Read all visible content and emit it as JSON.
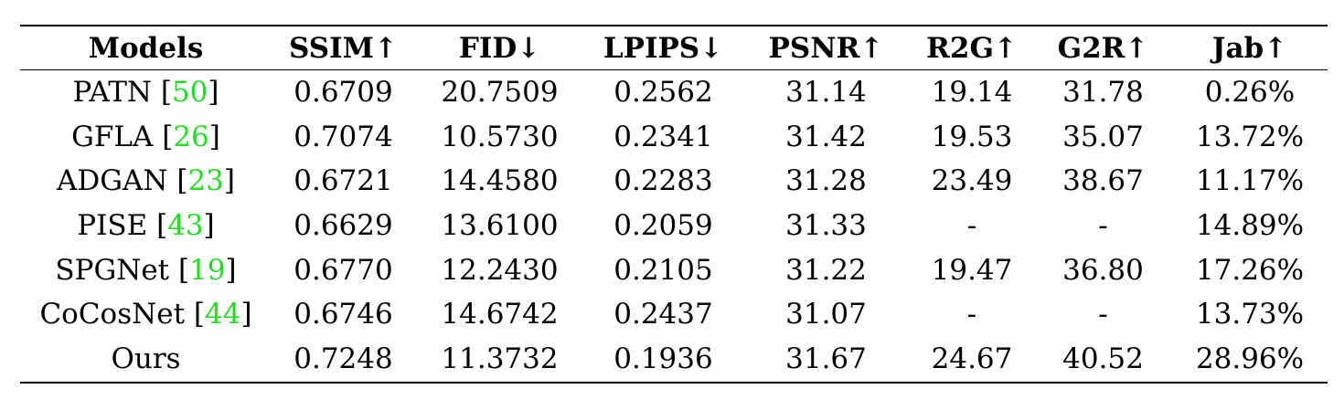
{
  "table": {
    "headers": [
      "Models",
      "SSIM↑",
      "FID↓",
      "LPIPS↓",
      "PSNR↑",
      "R2G↑",
      "G2R↑",
      "Jab↑"
    ],
    "rows": [
      {
        "model": "PATN",
        "ref": "50",
        "ssim": "0.6709",
        "fid": "20.7509",
        "lpips": "0.2562",
        "psnr": "31.14",
        "r2g": "19.14",
        "g2r": "31.78",
        "jab": "0.26%"
      },
      {
        "model": "GFLA",
        "ref": "26",
        "ssim": "0.7074",
        "fid": "10.5730",
        "lpips": "0.2341",
        "psnr": "31.42",
        "r2g": "19.53",
        "g2r": "35.07",
        "jab": "13.72%"
      },
      {
        "model": "ADGAN",
        "ref": "23",
        "ssim": "0.6721",
        "fid": "14.4580",
        "lpips": "0.2283",
        "psnr": "31.28",
        "r2g": "23.49",
        "g2r": "38.67",
        "jab": "11.17%"
      },
      {
        "model": "PISE",
        "ref": "43",
        "ssim": "0.6629",
        "fid": "13.6100",
        "lpips": "0.2059",
        "psnr": "31.33",
        "r2g": "-",
        "g2r": "-",
        "jab": "14.89%"
      },
      {
        "model": "SPGNet",
        "ref": "19",
        "ssim": "0.6770",
        "fid": "12.2430",
        "lpips": "0.2105",
        "psnr": "31.22",
        "r2g": "19.47",
        "g2r": "36.80",
        "jab": "17.26%"
      },
      {
        "model": "CoCosNet",
        "ref": "44",
        "ssim": "0.6746",
        "fid": "14.6742",
        "lpips": "0.2437",
        "psnr": "31.07",
        "r2g": "-",
        "g2r": "-",
        "jab": "13.73%"
      },
      {
        "model": "Ours",
        "ref": "",
        "ssim": "0.7248",
        "fid": "11.3732",
        "lpips": "0.1936",
        "psnr": "31.67",
        "r2g": "24.67",
        "g2r": "40.52",
        "jab": "28.96%"
      }
    ],
    "bold_cells": [
      {
        "row": 1,
        "col": "fid"
      },
      {
        "row": 6,
        "col": "ssim"
      },
      {
        "row": 6,
        "col": "lpips"
      },
      {
        "row": 6,
        "col": "psnr"
      },
      {
        "row": 6,
        "col": "r2g"
      },
      {
        "row": 6,
        "col": "g2r"
      },
      {
        "row": 6,
        "col": "jab"
      }
    ],
    "citation_color": "#22dd22"
  }
}
